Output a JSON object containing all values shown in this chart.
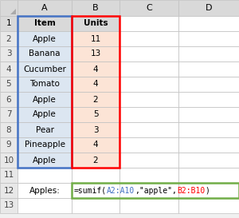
{
  "col_headers": [
    "",
    "A",
    "B",
    "C",
    "D"
  ],
  "items": [
    "Item",
    "Apple",
    "Banana",
    "Cucumber",
    "Tomato",
    "Apple",
    "Apple",
    "Pear",
    "Pineapple",
    "Apple",
    "",
    "Apples:",
    ""
  ],
  "units": [
    "Units",
    "11",
    "13",
    "4",
    "4",
    "2",
    "5",
    "3",
    "4",
    "2",
    "",
    "",
    ""
  ],
  "col_a_bg": "#dce6f1",
  "col_b_bg": "#fce4d6",
  "header_bg": "#d9d9d9",
  "row_num_bg": "#e8e8e8",
  "grid_color": "#c0c0c0",
  "col_b_border_color": "#ff0000",
  "col_a_border_color": "#4472c4",
  "row12_border_color": "#70ad47",
  "a2a10_color": "#4472c4",
  "b2b10_color": "#ff0000",
  "fig_bg": "#f0f0f0",
  "cell_bg": "#ffffff",
  "formula_parts": [
    "=sumif(",
    "A2:A10",
    ",\"apple\",",
    "B2:B10",
    ")"
  ],
  "formula_colors": [
    "#000000",
    "#4472c4",
    "#000000",
    "#ff0000",
    "#000000"
  ]
}
